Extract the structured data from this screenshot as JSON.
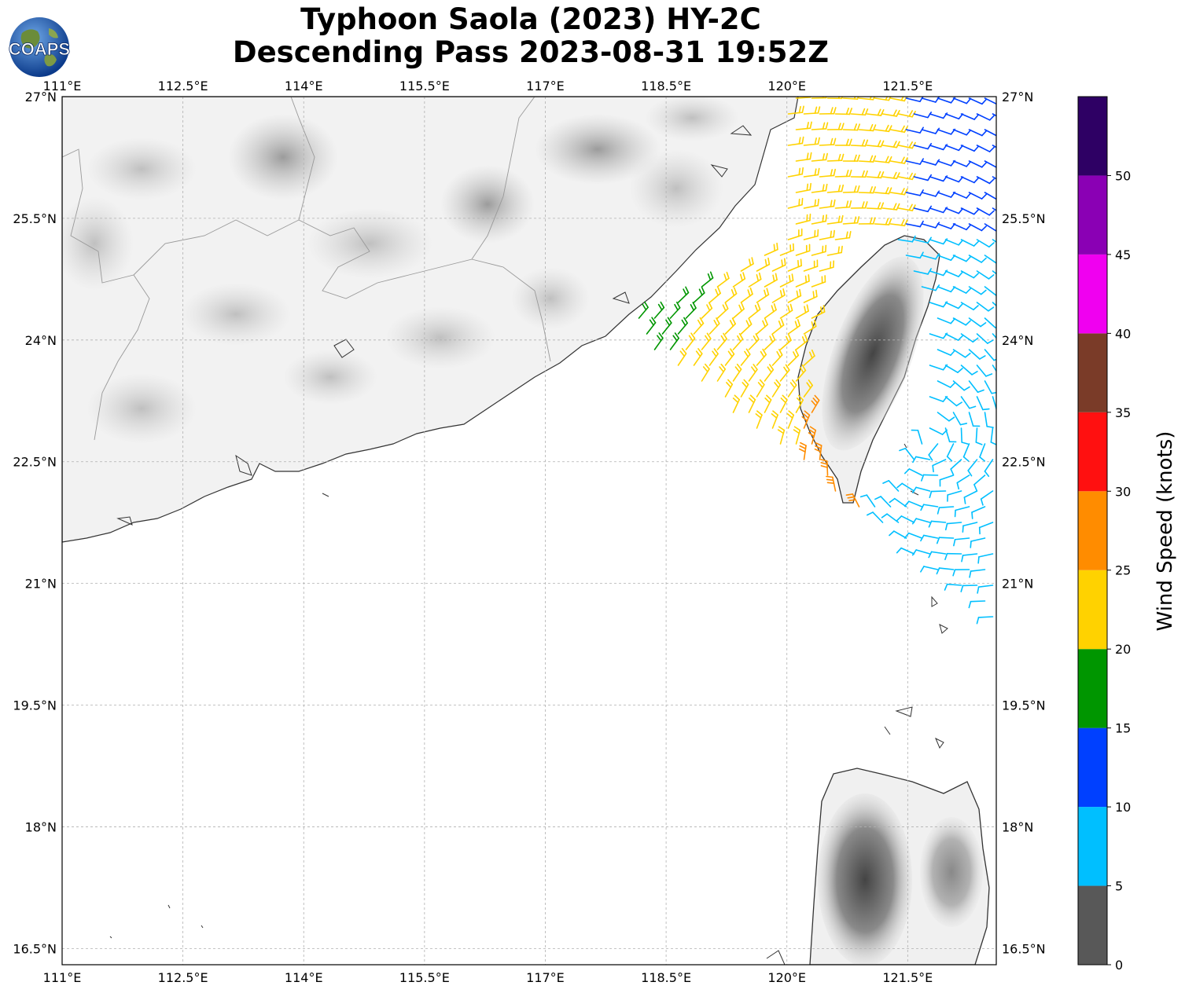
{
  "title": {
    "line1": "Typhoon Saola (2023) HY-2C",
    "line2": "Descending Pass 2023-08-31 19:52Z"
  },
  "logo": {
    "text": "COAPS",
    "icon": "globe-logo-icon"
  },
  "map": {
    "lon_labels": [
      "111°E",
      "112.5°E",
      "114°E",
      "115.5°E",
      "117°E",
      "118.5°E",
      "120°E",
      "121.5°E"
    ],
    "lat_labels_left": [
      "27°N",
      "25.5°N",
      "24°N",
      "22.5°N",
      "21°N",
      "19.5°N",
      "18°N",
      "16.5°N"
    ],
    "lat_labels_right": [
      "27°N",
      "25.5°N",
      "24°N",
      "22.5°N",
      "21°N",
      "19.5°N",
      "18°N",
      "16.5°N"
    ],
    "lon_range": [
      111,
      122.6
    ],
    "lat_range": [
      16.3,
      27
    ],
    "land_color": "#efefef",
    "coast_color": "#333333"
  },
  "colorbar": {
    "label": "Wind Speed (knots)",
    "tick_labels": [
      "0",
      "5",
      "10",
      "15",
      "20",
      "25",
      "30",
      "35",
      "40",
      "45",
      "50"
    ],
    "bins": [
      {
        "min": 0,
        "max": 5,
        "color": "#585858"
      },
      {
        "min": 5,
        "max": 10,
        "color": "#00bfff"
      },
      {
        "min": 10,
        "max": 15,
        "color": "#0040ff"
      },
      {
        "min": 15,
        "max": 20,
        "color": "#009600"
      },
      {
        "min": 20,
        "max": 25,
        "color": "#ffd200"
      },
      {
        "min": 25,
        "max": 30,
        "color": "#ff8c00"
      },
      {
        "min": 30,
        "max": 35,
        "color": "#ff1010"
      },
      {
        "min": 35,
        "max": 40,
        "color": "#7a3b28"
      },
      {
        "min": 40,
        "max": 45,
        "color": "#f000f0"
      },
      {
        "min": 45,
        "max": 50,
        "color": "#8a00b4"
      },
      {
        "min": 50,
        "max": 55,
        "color": "#2e0064"
      }
    ]
  }
}
